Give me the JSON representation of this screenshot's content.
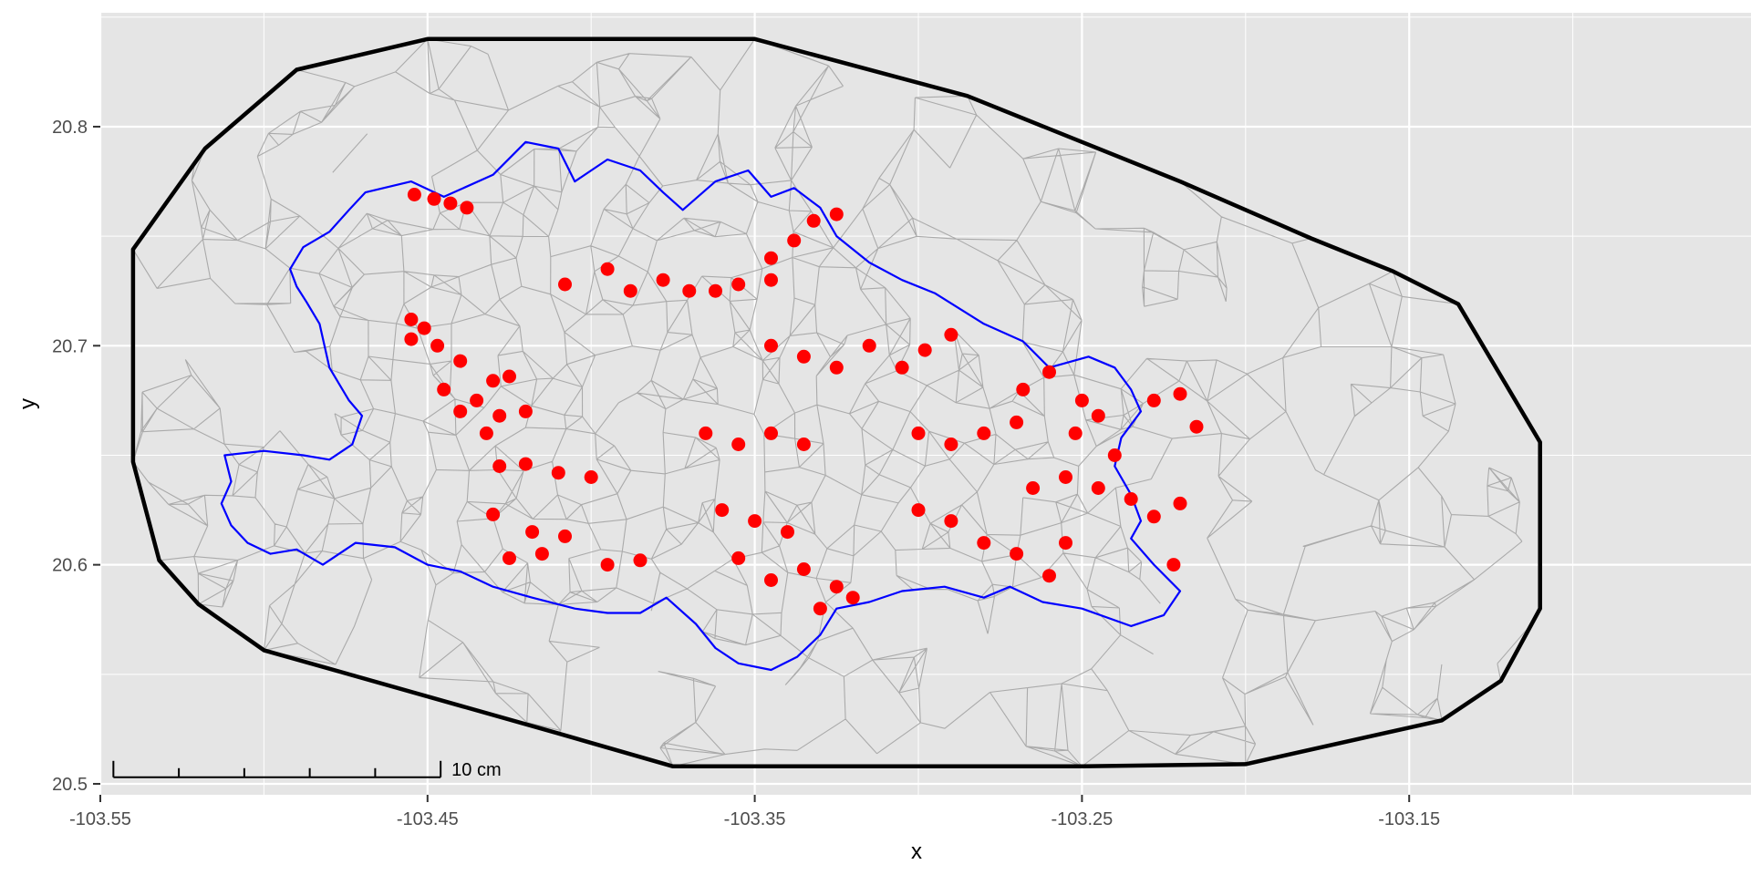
{
  "chart_data": {
    "type": "scatter",
    "title": "",
    "xlabel": "x",
    "ylabel": "y",
    "xlim": [
      -103.55,
      -103.05
    ],
    "ylim": [
      20.495,
      20.852
    ],
    "x_ticks": [
      -103.55,
      -103.45,
      -103.35,
      -103.25,
      -103.15
    ],
    "x_tick_labels": [
      "-103.55",
      "-103.45",
      "-103.35",
      "-103.25",
      "-103.15"
    ],
    "y_ticks": [
      20.5,
      20.6,
      20.7,
      20.8
    ],
    "y_tick_labels": [
      "20.5",
      "20.6",
      "20.7",
      "20.8"
    ],
    "grid": true,
    "colors": {
      "panel_background": "#e5e5e5",
      "grid": "#ffffff",
      "mesh_edges": "#aaaaaa",
      "outer_boundary": "#000000",
      "inner_boundary": "#0000ff",
      "points": "#ff0000"
    },
    "outer_boundary": [
      [
        -103.45,
        20.84
      ],
      [
        -103.35,
        20.84
      ],
      [
        -103.285,
        20.814
      ],
      [
        -103.22,
        20.775
      ],
      [
        -103.18,
        20.749
      ],
      [
        -103.155,
        20.734
      ],
      [
        -103.135,
        20.719
      ],
      [
        -103.11,
        20.656
      ],
      [
        -103.11,
        20.58
      ],
      [
        -103.122,
        20.547
      ],
      [
        -103.14,
        20.529
      ],
      [
        -103.2,
        20.509
      ],
      [
        -103.25,
        20.508
      ],
      [
        -103.375,
        20.508
      ],
      [
        -103.41,
        20.523
      ],
      [
        -103.5,
        20.561
      ],
      [
        -103.52,
        20.582
      ],
      [
        -103.532,
        20.602
      ],
      [
        -103.54,
        20.647
      ],
      [
        -103.54,
        20.744
      ],
      [
        -103.518,
        20.79
      ],
      [
        -103.49,
        20.826
      ],
      [
        -103.45,
        20.84
      ]
    ],
    "inner_boundary": [
      [
        -103.469,
        20.77
      ],
      [
        -103.455,
        20.775
      ],
      [
        -103.445,
        20.768
      ],
      [
        -103.43,
        20.778
      ],
      [
        -103.42,
        20.793
      ],
      [
        -103.41,
        20.79
      ],
      [
        -103.405,
        20.775
      ],
      [
        -103.395,
        20.785
      ],
      [
        -103.385,
        20.78
      ],
      [
        -103.378,
        20.77
      ],
      [
        -103.372,
        20.762
      ],
      [
        -103.362,
        20.775
      ],
      [
        -103.352,
        20.78
      ],
      [
        -103.345,
        20.768
      ],
      [
        -103.338,
        20.772
      ],
      [
        -103.33,
        20.763
      ],
      [
        -103.325,
        20.75
      ],
      [
        -103.315,
        20.738
      ],
      [
        -103.305,
        20.73
      ],
      [
        -103.295,
        20.724
      ],
      [
        -103.28,
        20.71
      ],
      [
        -103.268,
        20.702
      ],
      [
        -103.26,
        20.69
      ],
      [
        -103.248,
        20.695
      ],
      [
        -103.24,
        20.69
      ],
      [
        -103.235,
        20.68
      ],
      [
        -103.232,
        20.67
      ],
      [
        -103.238,
        20.658
      ],
      [
        -103.24,
        20.645
      ],
      [
        -103.235,
        20.632
      ],
      [
        -103.232,
        20.62
      ],
      [
        -103.235,
        20.612
      ],
      [
        -103.228,
        20.6
      ],
      [
        -103.22,
        20.588
      ],
      [
        -103.225,
        20.577
      ],
      [
        -103.235,
        20.572
      ],
      [
        -103.25,
        20.58
      ],
      [
        -103.262,
        20.583
      ],
      [
        -103.272,
        20.59
      ],
      [
        -103.28,
        20.585
      ],
      [
        -103.292,
        20.59
      ],
      [
        -103.305,
        20.588
      ],
      [
        -103.315,
        20.583
      ],
      [
        -103.325,
        20.58
      ],
      [
        -103.33,
        20.568
      ],
      [
        -103.337,
        20.558
      ],
      [
        -103.345,
        20.552
      ],
      [
        -103.355,
        20.555
      ],
      [
        -103.362,
        20.562
      ],
      [
        -103.368,
        20.573
      ],
      [
        -103.377,
        20.585
      ],
      [
        -103.385,
        20.578
      ],
      [
        -103.395,
        20.578
      ],
      [
        -103.405,
        20.58
      ],
      [
        -103.418,
        20.585
      ],
      [
        -103.43,
        20.59
      ],
      [
        -103.44,
        20.597
      ],
      [
        -103.45,
        20.6
      ],
      [
        -103.46,
        20.608
      ],
      [
        -103.472,
        20.61
      ],
      [
        -103.482,
        20.6
      ],
      [
        -103.49,
        20.607
      ],
      [
        -103.498,
        20.605
      ],
      [
        -103.505,
        20.61
      ],
      [
        -103.51,
        20.618
      ],
      [
        -103.513,
        20.628
      ],
      [
        -103.51,
        20.638
      ],
      [
        -103.512,
        20.65
      ],
      [
        -103.5,
        20.652
      ],
      [
        -103.488,
        20.65
      ],
      [
        -103.48,
        20.648
      ],
      [
        -103.473,
        20.655
      ],
      [
        -103.47,
        20.668
      ],
      [
        -103.474,
        20.675
      ],
      [
        -103.48,
        20.69
      ],
      [
        -103.483,
        20.71
      ],
      [
        -103.487,
        20.72
      ],
      [
        -103.49,
        20.727
      ],
      [
        -103.492,
        20.735
      ],
      [
        -103.488,
        20.745
      ],
      [
        -103.48,
        20.752
      ],
      [
        -103.474,
        20.762
      ],
      [
        -103.469,
        20.77
      ]
    ],
    "series": [
      {
        "values": [
          [
            -103.454,
            20.769
          ],
          [
            -103.448,
            20.767
          ],
          [
            -103.443,
            20.765
          ],
          [
            -103.438,
            20.763
          ],
          [
            -103.455,
            20.712
          ],
          [
            -103.451,
            20.708
          ],
          [
            -103.447,
            20.7
          ],
          [
            -103.455,
            20.703
          ],
          [
            -103.44,
            20.693
          ],
          [
            -103.445,
            20.68
          ],
          [
            -103.44,
            20.67
          ],
          [
            -103.435,
            20.675
          ],
          [
            -103.43,
            20.684
          ],
          [
            -103.425,
            20.686
          ],
          [
            -103.42,
            20.67
          ],
          [
            -103.428,
            20.668
          ],
          [
            -103.432,
            20.66
          ],
          [
            -103.428,
            20.645
          ],
          [
            -103.42,
            20.646
          ],
          [
            -103.41,
            20.642
          ],
          [
            -103.4,
            20.64
          ],
          [
            -103.43,
            20.623
          ],
          [
            -103.418,
            20.615
          ],
          [
            -103.408,
            20.613
          ],
          [
            -103.415,
            20.605
          ],
          [
            -103.425,
            20.603
          ],
          [
            -103.395,
            20.6
          ],
          [
            -103.385,
            20.602
          ],
          [
            -103.408,
            20.728
          ],
          [
            -103.395,
            20.735
          ],
          [
            -103.388,
            20.725
          ],
          [
            -103.378,
            20.73
          ],
          [
            -103.37,
            20.725
          ],
          [
            -103.362,
            20.725
          ],
          [
            -103.355,
            20.728
          ],
          [
            -103.345,
            20.73
          ],
          [
            -103.365,
            20.66
          ],
          [
            -103.355,
            20.655
          ],
          [
            -103.345,
            20.66
          ],
          [
            -103.335,
            20.655
          ],
          [
            -103.36,
            20.625
          ],
          [
            -103.35,
            20.62
          ],
          [
            -103.34,
            20.615
          ],
          [
            -103.355,
            20.603
          ],
          [
            -103.345,
            20.593
          ],
          [
            -103.335,
            20.598
          ],
          [
            -103.325,
            20.59
          ],
          [
            -103.33,
            20.58
          ],
          [
            -103.32,
            20.585
          ],
          [
            -103.345,
            20.74
          ],
          [
            -103.338,
            20.748
          ],
          [
            -103.332,
            20.757
          ],
          [
            -103.325,
            20.76
          ],
          [
            -103.345,
            20.7
          ],
          [
            -103.335,
            20.695
          ],
          [
            -103.325,
            20.69
          ],
          [
            -103.315,
            20.7
          ],
          [
            -103.305,
            20.69
          ],
          [
            -103.298,
            20.698
          ],
          [
            -103.29,
            20.705
          ],
          [
            -103.3,
            20.66
          ],
          [
            -103.29,
            20.655
          ],
          [
            -103.28,
            20.66
          ],
          [
            -103.27,
            20.665
          ],
          [
            -103.3,
            20.625
          ],
          [
            -103.29,
            20.62
          ],
          [
            -103.28,
            20.61
          ],
          [
            -103.27,
            20.605
          ],
          [
            -103.26,
            20.595
          ],
          [
            -103.255,
            20.61
          ],
          [
            -103.265,
            20.635
          ],
          [
            -103.255,
            20.64
          ],
          [
            -103.245,
            20.635
          ],
          [
            -103.268,
            20.68
          ],
          [
            -103.26,
            20.688
          ],
          [
            -103.25,
            20.675
          ],
          [
            -103.245,
            20.668
          ],
          [
            -103.252,
            20.66
          ],
          [
            -103.24,
            20.65
          ],
          [
            -103.235,
            20.63
          ],
          [
            -103.228,
            20.622
          ],
          [
            -103.22,
            20.628
          ],
          [
            -103.222,
            20.6
          ],
          [
            -103.228,
            20.675
          ],
          [
            -103.22,
            20.678
          ],
          [
            -103.215,
            20.663
          ]
        ]
      }
    ],
    "scale_bar": {
      "label": "10 cm",
      "x_start": -103.546,
      "x_end": -103.446,
      "y": 20.503,
      "segments": 5
    }
  }
}
